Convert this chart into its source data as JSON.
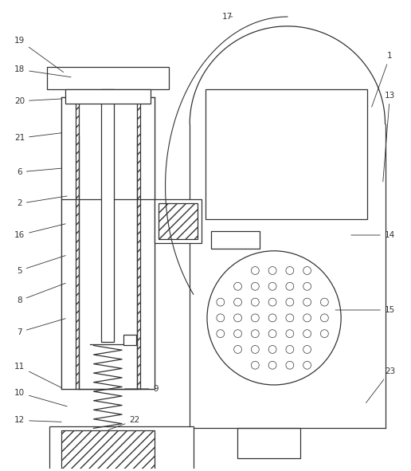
{
  "bg": "#ffffff",
  "lc": "#333333",
  "figsize": [
    5.16,
    5.91
  ],
  "dpi": 100
}
